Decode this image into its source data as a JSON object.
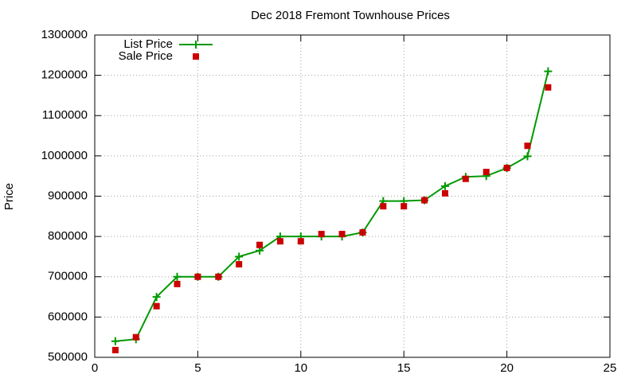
{
  "chart_data": {
    "type": "line",
    "title": "Dec 2018 Fremont Townhouse Prices",
    "y_label": "Price",
    "x": [
      1,
      2,
      3,
      4,
      5,
      6,
      7,
      8,
      9,
      10,
      11,
      12,
      13,
      14,
      15,
      16,
      17,
      18,
      19,
      20,
      21,
      22
    ],
    "series": [
      {
        "name": "List Price",
        "color": "#009900",
        "marker": "plus",
        "line": true,
        "values": [
          540000,
          545000,
          650000,
          700000,
          700000,
          700000,
          750000,
          765000,
          800000,
          800000,
          800000,
          800000,
          810000,
          888000,
          888000,
          890000,
          925000,
          948000,
          950000,
          970000,
          999000,
          1210000
        ]
      },
      {
        "name": "Sale Price",
        "color": "#cc0000",
        "marker": "square",
        "line": false,
        "values": [
          518000,
          550000,
          627000,
          682000,
          700000,
          700000,
          731000,
          779000,
          788000,
          788000,
          806000,
          806000,
          810000,
          875000,
          875000,
          890000,
          907000,
          943000,
          960000,
          970000,
          1025000,
          1170000
        ]
      }
    ],
    "xlim": [
      0,
      25
    ],
    "xticks": [
      0,
      5,
      10,
      15,
      20,
      25
    ],
    "ylim": [
      500000,
      1300000
    ],
    "yticks": [
      500000,
      600000,
      700000,
      800000,
      900000,
      1000000,
      1100000,
      1200000,
      1300000
    ],
    "grid": true,
    "legend": "top-left"
  }
}
